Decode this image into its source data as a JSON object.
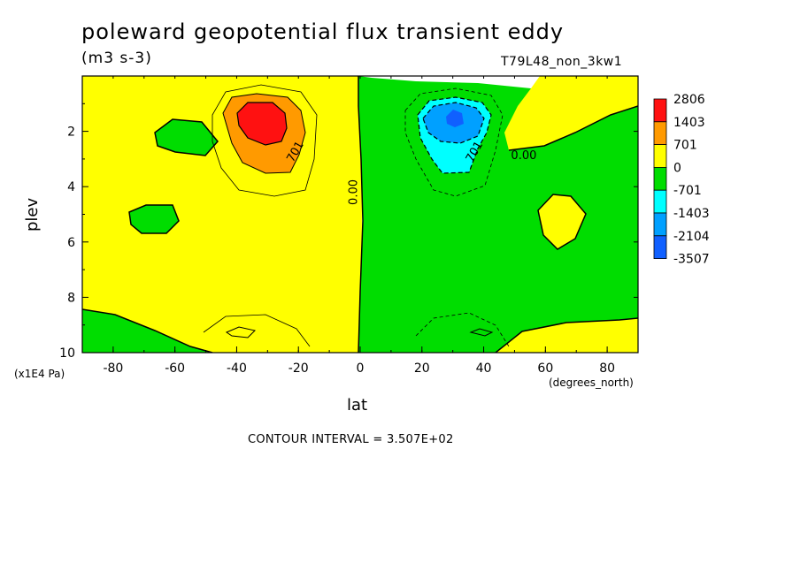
{
  "chart_data": {
    "type": "heatmap",
    "title": "poleward geopotential flux transient eddy",
    "units": "(m3 s-3)",
    "run_id": "T79L48_non_3kw1",
    "xlabel": "lat",
    "xunits": "(degrees_north)",
    "ylabel": "plev",
    "yunits": "(x1E4 Pa)",
    "xlim": [
      -90,
      90
    ],
    "ylim": [
      10,
      0
    ],
    "x_ticks": [
      "-80",
      "-60",
      "-40",
      "-20",
      "0",
      "20",
      "40",
      "60",
      "80"
    ],
    "y_ticks": [
      "2",
      "4",
      "6",
      "8",
      "10"
    ],
    "contour_interval_text": "CONTOUR INTERVAL = 3.507E+02",
    "contour_labels": [
      {
        "text": "701",
        "lat": -20,
        "plev": 2.8
      },
      {
        "text": "0.00",
        "lat": -1,
        "plev": 4.2
      },
      {
        "text": "701",
        "lat": 38,
        "plev": 2.8
      },
      {
        "text": "0.00",
        "lat": 53,
        "plev": 3.0
      }
    ],
    "colorbar": {
      "levels": [
        "2806",
        "1403",
        "701",
        "0",
        "-701",
        "-1403",
        "-2104",
        "-3507"
      ],
      "colors": [
        "#ff1111",
        "#ff9a00",
        "#ffff00",
        "#00dd00",
        "#00ffff",
        "#00a0ff",
        "#1060ff"
      ]
    },
    "colors": {
      "positive_strong": "#ff1111",
      "positive_mid": "#ff9a00",
      "positive_weak": "#ffff00",
      "negative_weak": "#00dd00",
      "negative_mid": "#00ffff",
      "negative_strong": "#00a0ff",
      "negative_max": "#1060ff"
    }
  }
}
